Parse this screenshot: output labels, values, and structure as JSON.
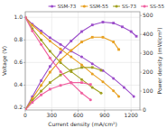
{
  "chart_data": {
    "type": "line",
    "xlabel": "Current density (mA/cm²)",
    "ylabel": "Voltage (V)",
    "y2label": "Power density (mW/cm²)",
    "xlim": [
      0,
      1300
    ],
    "ylim": [
      0.18,
      1.05
    ],
    "y2lim": [
      0,
      520
    ],
    "xticks": [
      0,
      300,
      600,
      900,
      1200
    ],
    "yticks": [
      0.2,
      0.4,
      0.6,
      0.8,
      {
        "value": 1.0,
        "label": "1.0"
      }
    ],
    "y2ticks": [
      0,
      100,
      200,
      300,
      400,
      500
    ],
    "grid": true,
    "legend": "upper right",
    "series": [
      {
        "name": "SSM-73",
        "color": "#9b4dca",
        "marker": "circle",
        "x": [
          0,
          80,
          180,
          280,
          400,
          520,
          640,
          760,
          880,
          1000,
          1120,
          1230
        ],
        "values": [
          1.0,
          0.94,
          0.88,
          0.82,
          0.76,
          0.7,
          0.65,
          0.59,
          0.53,
          0.46,
          0.38,
          0.3
        ]
      },
      {
        "axis": "y2",
        "color": "#9b4dca",
        "marker": "square",
        "x": [
          0,
          80,
          180,
          280,
          400,
          520,
          640,
          760,
          880,
          1000,
          1100,
          1200,
          1260
        ],
        "values": [
          0,
          70,
          155,
          230,
          305,
          365,
          415,
          450,
          465,
          460,
          440,
          415,
          390
        ]
      },
      {
        "name": "SSM-55",
        "color": "#e8a020",
        "marker": "circle",
        "x": [
          0,
          80,
          180,
          280,
          400,
          520,
          640,
          760,
          880,
          1000,
          1060
        ],
        "values": [
          1.0,
          0.93,
          0.86,
          0.79,
          0.72,
          0.65,
          0.58,
          0.5,
          0.43,
          0.35,
          0.3
        ]
      },
      {
        "axis": "y2",
        "color": "#e8a020",
        "marker": "square",
        "x": [
          0,
          80,
          180,
          280,
          400,
          520,
          640,
          760,
          880,
          1000,
          1060
        ],
        "values": [
          0,
          60,
          130,
          200,
          265,
          315,
          360,
          385,
          385,
          360,
          320
        ]
      },
      {
        "name": "SS-73",
        "color": "#a0a020",
        "marker": "circle",
        "x": [
          0,
          80,
          180,
          280,
          400,
          520,
          640,
          760,
          860
        ],
        "values": [
          1.0,
          0.9,
          0.8,
          0.7,
          0.6,
          0.52,
          0.45,
          0.38,
          0.33
        ]
      },
      {
        "axis": "y2",
        "color": "#a0a020",
        "marker": "square",
        "x": [
          0,
          80,
          180,
          280,
          400,
          520,
          640,
          760,
          860
        ],
        "values": [
          0,
          50,
          100,
          145,
          185,
          210,
          225,
          225,
          210
        ]
      },
      {
        "name": "SS-55",
        "color": "#f060a0",
        "marker": "circle",
        "x": [
          0,
          80,
          180,
          280,
          400,
          520,
          640,
          740
        ],
        "values": [
          1.0,
          0.88,
          0.76,
          0.64,
          0.52,
          0.42,
          0.33,
          0.27
        ]
      },
      {
        "axis": "y2",
        "color": "#f060a0",
        "marker": "square",
        "x": [
          0,
          80,
          180,
          280,
          400,
          520,
          640,
          740
        ],
        "values": [
          0,
          40,
          80,
          110,
          130,
          145,
          145,
          135
        ]
      }
    ]
  }
}
